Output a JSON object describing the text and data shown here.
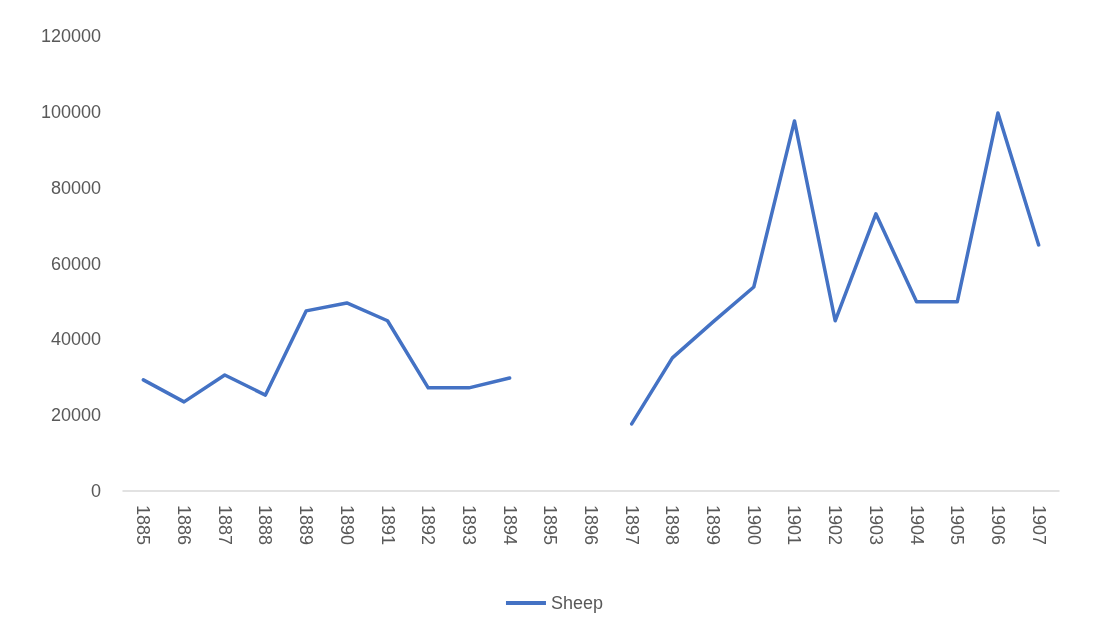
{
  "chart_data": {
    "type": "line",
    "categories": [
      "1885",
      "1886",
      "1887",
      "1888",
      "1889",
      "1890",
      "1891",
      "1892",
      "1893",
      "1894",
      "1895",
      "1896",
      "1897",
      "1898",
      "1899",
      "1900",
      "1901",
      "1902",
      "1903",
      "1904",
      "1905",
      "1906",
      "1907"
    ],
    "series": [
      {
        "name": "Sheep",
        "color": "#4472c4",
        "values": [
          29300,
          23500,
          30600,
          25300,
          47500,
          49600,
          44900,
          27200,
          27200,
          29800,
          null,
          null,
          17700,
          35100,
          44600,
          53800,
          97600,
          44900,
          73100,
          49900,
          49900,
          99700,
          64900
        ]
      }
    ],
    "ylim": [
      0,
      120000
    ],
    "yticks": [
      0,
      20000,
      40000,
      60000,
      80000,
      100000,
      120000
    ],
    "grid": false,
    "legend": "bottom",
    "marker": "none",
    "line_style": "solid"
  }
}
